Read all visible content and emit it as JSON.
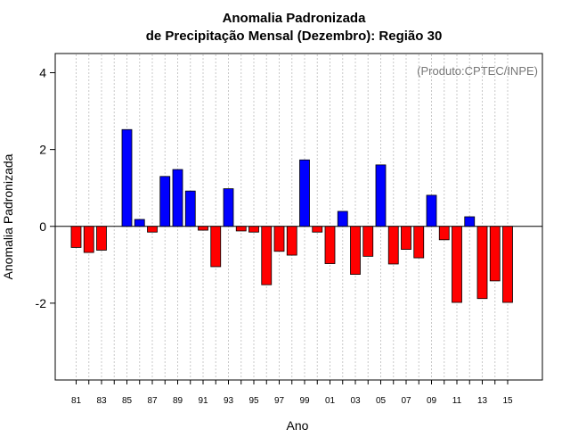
{
  "chart_data": {
    "type": "bar",
    "title": "Anomalia Padronizada",
    "subtitle": "de Precipitação Mensal (Dezembro): Região 30",
    "xlabel": "Ano",
    "ylabel": "Anomalia Padronizada",
    "credit": "(Produto:CPTEC/INPE)",
    "ylim": [
      -4,
      4.5
    ],
    "yticks": [
      -2,
      0,
      2,
      4
    ],
    "ytick_labels": [
      "-2",
      "0",
      "2",
      "4"
    ],
    "year_start": 1981,
    "xtick_labels": [
      "81",
      "83",
      "85",
      "87",
      "89",
      "91",
      "93",
      "95",
      "97",
      "99",
      "01",
      "03",
      "05",
      "07",
      "09",
      "11",
      "13",
      "15"
    ],
    "x": [
      1981,
      1982,
      1983,
      1984,
      1985,
      1986,
      1987,
      1988,
      1989,
      1990,
      1991,
      1992,
      1993,
      1994,
      1995,
      1996,
      1997,
      1998,
      1999,
      2000,
      2001,
      2002,
      2003,
      2004,
      2005,
      2006,
      2007,
      2008,
      2009,
      2010,
      2011,
      2012,
      2013,
      2014,
      2015
    ],
    "values": [
      -0.55,
      -0.68,
      -0.62,
      null,
      2.52,
      0.18,
      -0.15,
      1.3,
      1.48,
      0.92,
      -0.1,
      -1.05,
      0.98,
      -0.12,
      -0.15,
      -1.52,
      -0.65,
      -0.75,
      1.73,
      -0.15,
      -0.97,
      0.39,
      -1.25,
      -0.78,
      1.6,
      -0.98,
      -0.6,
      -0.82,
      0.81,
      -0.35,
      -1.98,
      0.25,
      -1.88,
      -1.42,
      -1.98
    ],
    "positive_color": "#0000ff",
    "negative_color": "#ff0000",
    "grid": true
  }
}
